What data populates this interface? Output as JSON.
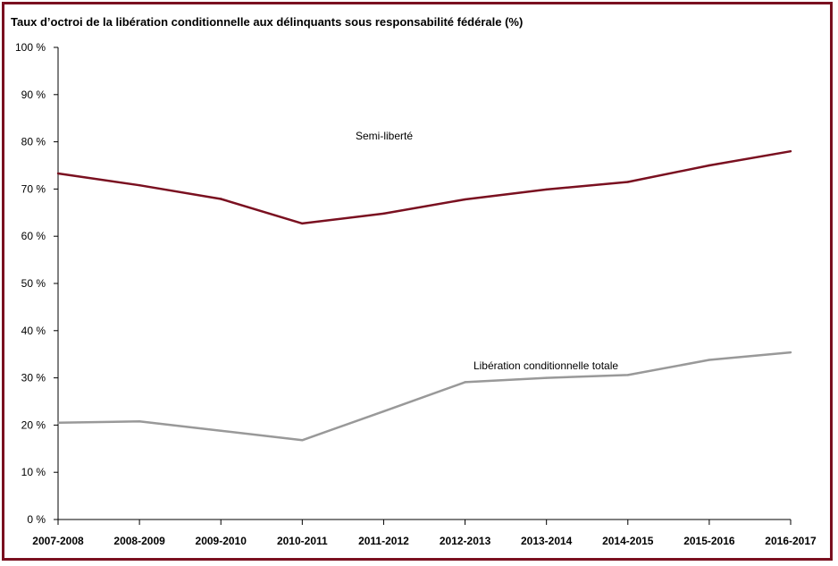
{
  "chart_data": {
    "type": "line",
    "title": "Taux d’octroi de la libération conditionnelle aux délinquants sous responsabilité fédérale (%)",
    "categories": [
      "2007-2008",
      "2008-2009",
      "2009-2010",
      "2010-2011",
      "2011-2012",
      "2012-2013",
      "2013-2014",
      "2014-2015",
      "2015-2016",
      "2016-2017"
    ],
    "y_ticks": [
      "0 %",
      "10 %",
      "20 %",
      "30 %",
      "40 %",
      "50 %",
      "60 %",
      "70 %",
      "80 %",
      "90 %",
      "100 %"
    ],
    "ylim": [
      0,
      100
    ],
    "grid": false,
    "series": [
      {
        "name": "Semi-liberté",
        "color": "#7a1020",
        "values": [
          73.3,
          70.8,
          67.9,
          62.7,
          64.8,
          67.8,
          69.9,
          71.5,
          75.0,
          78.0
        ]
      },
      {
        "name": "Libération conditionnelle totale",
        "color": "#999999",
        "values": [
          20.5,
          20.8,
          18.8,
          16.8,
          22.9,
          29.1,
          30.0,
          30.6,
          33.8,
          35.4
        ]
      }
    ]
  }
}
